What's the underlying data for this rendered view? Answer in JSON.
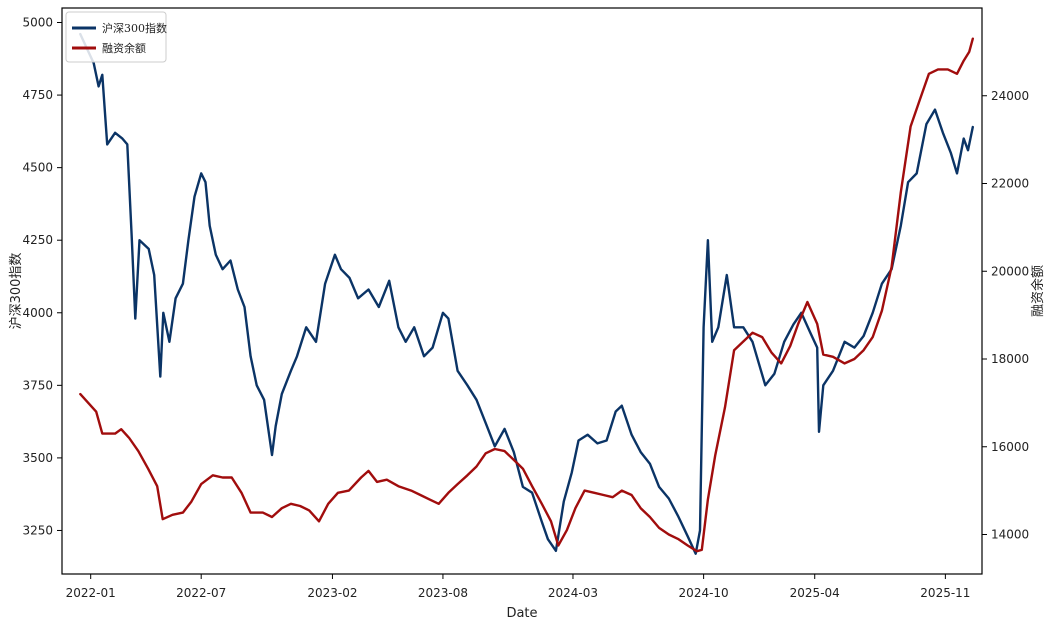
{
  "chart_data": {
    "type": "line",
    "title": "",
    "xlabel": "Date",
    "ylabel_left": "沪深300指数",
    "ylabel_right": "融资余额",
    "x_ticks": [
      "2022-01",
      "2022-07",
      "2023-02",
      "2023-08",
      "2024-03",
      "2024-10",
      "2025-04",
      "2025-11"
    ],
    "x_range": [
      "2021-11-15",
      "2025-12-31"
    ],
    "y_left_ticks": [
      3250,
      3500,
      3750,
      4000,
      4250,
      4500,
      4750,
      5000
    ],
    "y_left_range": [
      3100,
      5050
    ],
    "y_right_ticks": [
      14000,
      16000,
      18000,
      20000,
      22000,
      24000
    ],
    "y_right_range": [
      13100,
      26000
    ],
    "grid": false,
    "legend_position": "top-left",
    "series": [
      {
        "name": "沪深300指数",
        "axis": "left",
        "color": "#0b3466",
        "points": [
          [
            "2021-12-15",
            4960
          ],
          [
            "2021-12-28",
            4900
          ],
          [
            "2022-01-06",
            4860
          ],
          [
            "2022-01-14",
            4780
          ],
          [
            "2022-01-20",
            4820
          ],
          [
            "2022-01-28",
            4580
          ],
          [
            "2022-02-10",
            4620
          ],
          [
            "2022-02-22",
            4600
          ],
          [
            "2022-03-02",
            4580
          ],
          [
            "2022-03-09",
            4270
          ],
          [
            "2022-03-15",
            3980
          ],
          [
            "2022-03-22",
            4250
          ],
          [
            "2022-04-06",
            4220
          ],
          [
            "2022-04-15",
            4130
          ],
          [
            "2022-04-25",
            3780
          ],
          [
            "2022-04-30",
            4000
          ],
          [
            "2022-05-10",
            3900
          ],
          [
            "2022-05-20",
            4050
          ],
          [
            "2022-06-01",
            4100
          ],
          [
            "2022-06-10",
            4250
          ],
          [
            "2022-06-20",
            4400
          ],
          [
            "2022-07-01",
            4480
          ],
          [
            "2022-07-08",
            4450
          ],
          [
            "2022-07-15",
            4300
          ],
          [
            "2022-07-25",
            4200
          ],
          [
            "2022-08-05",
            4150
          ],
          [
            "2022-08-18",
            4180
          ],
          [
            "2022-08-30",
            4080
          ],
          [
            "2022-09-10",
            4020
          ],
          [
            "2022-09-20",
            3850
          ],
          [
            "2022-09-30",
            3750
          ],
          [
            "2022-10-12",
            3700
          ],
          [
            "2022-10-25",
            3510
          ],
          [
            "2022-10-31",
            3610
          ],
          [
            "2022-11-10",
            3720
          ],
          [
            "2022-11-25",
            3800
          ],
          [
            "2022-12-05",
            3850
          ],
          [
            "2022-12-20",
            3950
          ],
          [
            "2023-01-05",
            3900
          ],
          [
            "2023-01-20",
            4100
          ],
          [
            "2023-02-05",
            4200
          ],
          [
            "2023-02-15",
            4150
          ],
          [
            "2023-03-01",
            4120
          ],
          [
            "2023-03-15",
            4050
          ],
          [
            "2023-04-01",
            4080
          ],
          [
            "2023-04-18",
            4020
          ],
          [
            "2023-05-05",
            4110
          ],
          [
            "2023-05-20",
            3950
          ],
          [
            "2023-06-01",
            3900
          ],
          [
            "2023-06-15",
            3950
          ],
          [
            "2023-07-01",
            3850
          ],
          [
            "2023-07-15",
            3880
          ],
          [
            "2023-08-01",
            4000
          ],
          [
            "2023-08-10",
            3980
          ],
          [
            "2023-08-25",
            3800
          ],
          [
            "2023-09-10",
            3750
          ],
          [
            "2023-09-25",
            3700
          ],
          [
            "2023-10-10",
            3620
          ],
          [
            "2023-10-25",
            3540
          ],
          [
            "2023-11-10",
            3600
          ],
          [
            "2023-11-25",
            3520
          ],
          [
            "2023-12-10",
            3400
          ],
          [
            "2023-12-25",
            3380
          ],
          [
            "2024-01-10",
            3280
          ],
          [
            "2024-01-20",
            3220
          ],
          [
            "2024-02-02",
            3180
          ],
          [
            "2024-02-15",
            3350
          ],
          [
            "2024-02-28",
            3450
          ],
          [
            "2024-03-10",
            3560
          ],
          [
            "2024-03-25",
            3580
          ],
          [
            "2024-04-10",
            3550
          ],
          [
            "2024-04-25",
            3560
          ],
          [
            "2024-05-10",
            3660
          ],
          [
            "2024-05-20",
            3680
          ],
          [
            "2024-06-05",
            3580
          ],
          [
            "2024-06-20",
            3520
          ],
          [
            "2024-07-05",
            3480
          ],
          [
            "2024-07-20",
            3400
          ],
          [
            "2024-08-05",
            3360
          ],
          [
            "2024-08-20",
            3300
          ],
          [
            "2024-09-05",
            3230
          ],
          [
            "2024-09-18",
            3170
          ],
          [
            "2024-09-25",
            3250
          ],
          [
            "2024-10-01",
            3950
          ],
          [
            "2024-10-08",
            4250
          ],
          [
            "2024-10-15",
            3900
          ],
          [
            "2024-10-25",
            3950
          ],
          [
            "2024-11-08",
            4130
          ],
          [
            "2024-11-20",
            3950
          ],
          [
            "2024-12-05",
            3950
          ],
          [
            "2024-12-20",
            3900
          ],
          [
            "2025-01-10",
            3750
          ],
          [
            "2025-01-25",
            3790
          ],
          [
            "2025-02-10",
            3900
          ],
          [
            "2025-02-25",
            3960
          ],
          [
            "2025-03-10",
            4000
          ],
          [
            "2025-03-25",
            3930
          ],
          [
            "2025-04-05",
            3880
          ],
          [
            "2025-04-08",
            3590
          ],
          [
            "2025-04-15",
            3750
          ],
          [
            "2025-05-01",
            3800
          ],
          [
            "2025-05-20",
            3900
          ],
          [
            "2025-06-05",
            3880
          ],
          [
            "2025-06-20",
            3920
          ],
          [
            "2025-07-05",
            4000
          ],
          [
            "2025-07-20",
            4100
          ],
          [
            "2025-08-05",
            4150
          ],
          [
            "2025-08-20",
            4300
          ],
          [
            "2025-09-01",
            4450
          ],
          [
            "2025-09-15",
            4480
          ],
          [
            "2025-10-01",
            4650
          ],
          [
            "2025-10-15",
            4700
          ],
          [
            "2025-10-28",
            4620
          ],
          [
            "2025-11-10",
            4550
          ],
          [
            "2025-11-20",
            4480
          ],
          [
            "2025-12-01",
            4600
          ],
          [
            "2025-12-08",
            4560
          ],
          [
            "2025-12-16",
            4640
          ]
        ]
      },
      {
        "name": "融资余额",
        "axis": "right",
        "color": "#a10d0d",
        "points": [
          [
            "2021-12-15",
            17200
          ],
          [
            "2021-12-28",
            17000
          ],
          [
            "2022-01-10",
            16800
          ],
          [
            "2022-01-20",
            16300
          ],
          [
            "2022-02-10",
            16300
          ],
          [
            "2022-02-20",
            16400
          ],
          [
            "2022-03-05",
            16200
          ],
          [
            "2022-03-20",
            15900
          ],
          [
            "2022-04-05",
            15500
          ],
          [
            "2022-04-20",
            15100
          ],
          [
            "2022-04-29",
            14350
          ],
          [
            "2022-05-15",
            14450
          ],
          [
            "2022-06-01",
            14500
          ],
          [
            "2022-06-15",
            14750
          ],
          [
            "2022-07-01",
            15150
          ],
          [
            "2022-07-20",
            15350
          ],
          [
            "2022-08-05",
            15300
          ],
          [
            "2022-08-20",
            15300
          ],
          [
            "2022-09-05",
            14950
          ],
          [
            "2022-09-20",
            14500
          ],
          [
            "2022-10-10",
            14500
          ],
          [
            "2022-10-25",
            14400
          ],
          [
            "2022-11-10",
            14600
          ],
          [
            "2022-11-25",
            14700
          ],
          [
            "2022-12-10",
            14650
          ],
          [
            "2022-12-25",
            14550
          ],
          [
            "2023-01-10",
            14300
          ],
          [
            "2023-01-25",
            14700
          ],
          [
            "2023-02-10",
            14950
          ],
          [
            "2023-02-28",
            15000
          ],
          [
            "2023-03-20",
            15300
          ],
          [
            "2023-04-01",
            15450
          ],
          [
            "2023-04-15",
            15200
          ],
          [
            "2023-05-01",
            15250
          ],
          [
            "2023-05-20",
            15100
          ],
          [
            "2023-06-10",
            15000
          ],
          [
            "2023-06-25",
            14900
          ],
          [
            "2023-07-10",
            14800
          ],
          [
            "2023-07-25",
            14700
          ],
          [
            "2023-08-10",
            14950
          ],
          [
            "2023-08-25",
            15150
          ],
          [
            "2023-09-10",
            15350
          ],
          [
            "2023-09-25",
            15550
          ],
          [
            "2023-10-10",
            15850
          ],
          [
            "2023-10-25",
            15950
          ],
          [
            "2023-11-10",
            15900
          ],
          [
            "2023-11-25",
            15700
          ],
          [
            "2023-12-10",
            15500
          ],
          [
            "2023-12-25",
            15100
          ],
          [
            "2024-01-10",
            14700
          ],
          [
            "2024-01-25",
            14300
          ],
          [
            "2024-02-06",
            13750
          ],
          [
            "2024-02-20",
            14100
          ],
          [
            "2024-03-05",
            14600
          ],
          [
            "2024-03-20",
            15000
          ],
          [
            "2024-04-05",
            14950
          ],
          [
            "2024-04-20",
            14900
          ],
          [
            "2024-05-05",
            14850
          ],
          [
            "2024-05-20",
            15000
          ],
          [
            "2024-06-05",
            14900
          ],
          [
            "2024-06-20",
            14600
          ],
          [
            "2024-07-05",
            14400
          ],
          [
            "2024-07-20",
            14150
          ],
          [
            "2024-08-05",
            14000
          ],
          [
            "2024-08-20",
            13900
          ],
          [
            "2024-09-05",
            13750
          ],
          [
            "2024-09-20",
            13620
          ],
          [
            "2024-09-28",
            13650
          ],
          [
            "2024-10-08",
            14800
          ],
          [
            "2024-10-20",
            15800
          ],
          [
            "2024-11-05",
            16900
          ],
          [
            "2024-11-20",
            18200
          ],
          [
            "2024-12-05",
            18400
          ],
          [
            "2024-12-20",
            18600
          ],
          [
            "2025-01-05",
            18500
          ],
          [
            "2025-01-20",
            18150
          ],
          [
            "2025-02-05",
            17900
          ],
          [
            "2025-02-20",
            18300
          ],
          [
            "2025-03-05",
            18800
          ],
          [
            "2025-03-20",
            19300
          ],
          [
            "2025-04-05",
            18800
          ],
          [
            "2025-04-15",
            18100
          ],
          [
            "2025-05-01",
            18050
          ],
          [
            "2025-05-20",
            17900
          ],
          [
            "2025-06-05",
            18000
          ],
          [
            "2025-06-20",
            18200
          ],
          [
            "2025-07-05",
            18500
          ],
          [
            "2025-07-20",
            19100
          ],
          [
            "2025-08-05",
            20100
          ],
          [
            "2025-08-20",
            21800
          ],
          [
            "2025-09-05",
            23300
          ],
          [
            "2025-09-20",
            23900
          ],
          [
            "2025-10-05",
            24500
          ],
          [
            "2025-10-20",
            24600
          ],
          [
            "2025-11-05",
            24600
          ],
          [
            "2025-11-20",
            24500
          ],
          [
            "2025-12-01",
            24800
          ],
          [
            "2025-12-10",
            25000
          ],
          [
            "2025-12-16",
            25300
          ]
        ]
      }
    ]
  }
}
